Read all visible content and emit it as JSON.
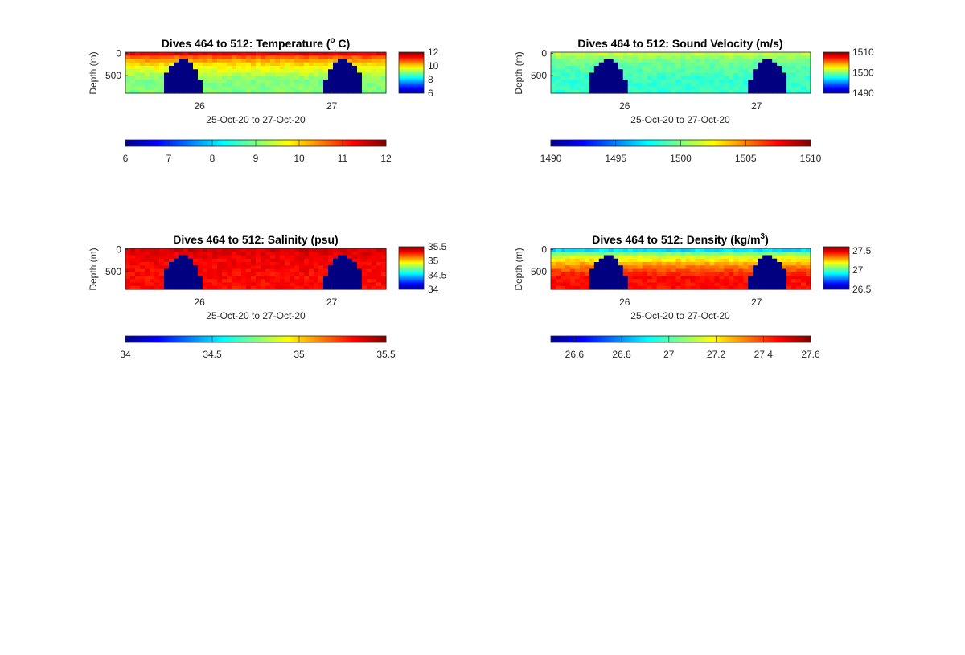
{
  "chart_data": [
    {
      "type": "heatmap",
      "variable": "temperature",
      "title_main": "Dives 464 to 512: Temperature (",
      "title_sup": "o",
      "title_tail": " C)",
      "xlabel": "25-Oct-20 to 27-Oct-20",
      "ylabel": "Depth (m)",
      "x_ticks": [
        "26",
        "27"
      ],
      "y_ticks": [
        "0",
        "500"
      ],
      "x_range_days": [
        25.44,
        27.41
      ],
      "depth_range": [
        -30,
        900
      ],
      "right_colorbar_ticks": [
        "12",
        "10",
        "8",
        "6"
      ],
      "bottom_colorbar_ticks": [
        "6",
        "7",
        "8",
        "9",
        "10",
        "11",
        "12"
      ],
      "clim": [
        6,
        12
      ],
      "surface_value": 11.7,
      "deep_value": 9.0,
      "no_data_value": 6.0,
      "no_data_regions": [
        [
          25.72,
          26.02
        ],
        [
          26.94,
          27.24
        ]
      ]
    },
    {
      "type": "heatmap",
      "variable": "sound_velocity",
      "title_main": "Dives 464 to 512: Sound Velocity (m/s)",
      "title_sup": "",
      "title_tail": "",
      "xlabel": "25-Oct-20 to 27-Oct-20",
      "ylabel": "Depth (m)",
      "x_ticks": [
        "26",
        "27"
      ],
      "y_ticks": [
        "0",
        "500"
      ],
      "x_range_days": [
        25.44,
        27.41
      ],
      "depth_range": [
        -30,
        900
      ],
      "right_colorbar_ticks": [
        "1510",
        "1500",
        "1490"
      ],
      "bottom_colorbar_ticks": [
        "1490",
        "1495",
        "1500",
        "1505",
        "1510"
      ],
      "clim": [
        1490,
        1510
      ],
      "surface_value": 1501.5,
      "deep_value": 1498.5,
      "no_data_value": 1490,
      "no_data_regions": [
        [
          25.72,
          26.02
        ],
        [
          26.94,
          27.24
        ]
      ]
    },
    {
      "type": "heatmap",
      "variable": "salinity",
      "title_main": "Dives 464 to 512: Salinity (psu)",
      "title_sup": "",
      "title_tail": "",
      "xlabel": "25-Oct-20 to 27-Oct-20",
      "ylabel": "Depth (m)",
      "x_ticks": [
        "26",
        "27"
      ],
      "y_ticks": [
        "0",
        "500"
      ],
      "x_range_days": [
        25.44,
        27.41
      ],
      "depth_range": [
        -30,
        900
      ],
      "right_colorbar_ticks": [
        "35.5",
        "35",
        "34.5",
        "34"
      ],
      "bottom_colorbar_ticks": [
        "34",
        "34.5",
        "35",
        "35.5"
      ],
      "clim": [
        34,
        35.5
      ],
      "surface_value": 35.38,
      "deep_value": 35.3,
      "no_data_value": 34,
      "no_data_regions": [
        [
          25.72,
          26.02
        ],
        [
          26.94,
          27.24
        ]
      ]
    },
    {
      "type": "heatmap",
      "variable": "density",
      "title_main": "Dives 464 to 512: Density (kg/m",
      "title_sup": "3",
      "title_tail": ")",
      "xlabel": "25-Oct-20 to 27-Oct-20",
      "ylabel": "Depth (m)",
      "x_ticks": [
        "26",
        "27"
      ],
      "y_ticks": [
        "0",
        "500"
      ],
      "x_range_days": [
        25.44,
        27.41
      ],
      "depth_range": [
        -30,
        900
      ],
      "right_colorbar_ticks": [
        "27.5",
        "27",
        "26.5"
      ],
      "bottom_colorbar_ticks": [
        "26.6",
        "26.8",
        "27",
        "27.2",
        "27.4",
        "27.6"
      ],
      "clim": [
        26.5,
        27.6
      ],
      "surface_value": 26.8,
      "deep_value": 27.45,
      "no_data_value": 26.5,
      "no_data_regions": [
        [
          25.72,
          26.02
        ],
        [
          26.94,
          27.24
        ]
      ]
    }
  ]
}
